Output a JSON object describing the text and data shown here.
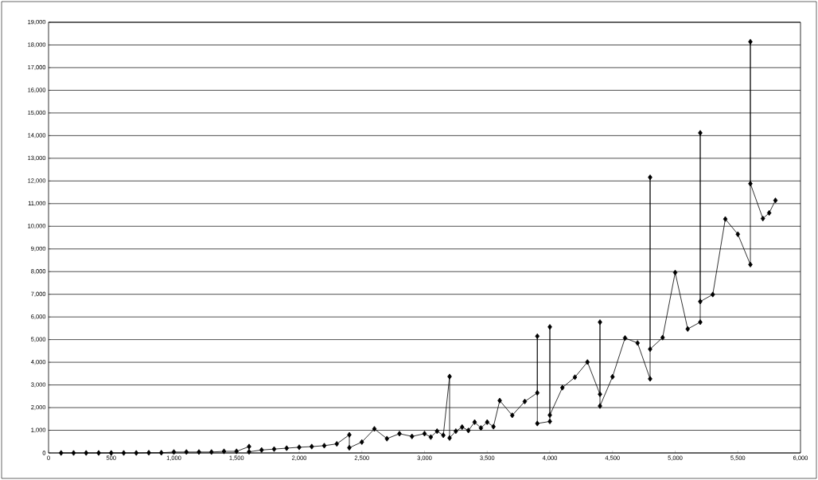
{
  "chart_data": {
    "type": "line",
    "grid": "y",
    "marker": "diamond",
    "line_style": "solid",
    "xlim": [
      0,
      6000
    ],
    "ylim": [
      0,
      19000
    ],
    "xticks": [
      0,
      500,
      {
        "value": 1000,
        "label": "1,000"
      },
      {
        "value": 1500,
        "label": "1,500"
      },
      {
        "value": 2000,
        "label": "2,000"
      },
      {
        "value": 2500,
        "label": "2,500"
      },
      {
        "value": 3000,
        "label": "3,000"
      },
      {
        "value": 3500,
        "label": "3,500"
      },
      {
        "value": 4000,
        "label": "4,000"
      },
      {
        "value": 4500,
        "label": "4,500"
      },
      {
        "value": 5000,
        "label": "5,000"
      },
      {
        "value": 5500,
        "label": "5,500"
      },
      {
        "value": 6000,
        "label": "6,000"
      }
    ],
    "yticks": [
      0,
      {
        "value": 1000,
        "label": "1,000"
      },
      {
        "value": 2000,
        "label": "2,000"
      },
      {
        "value": 3000,
        "label": "3,000"
      },
      {
        "value": 4000,
        "label": "4,000"
      },
      {
        "value": 5000,
        "label": "5,000"
      },
      {
        "value": 6000,
        "label": "6,000"
      },
      {
        "value": 7000,
        "label": "7,000"
      },
      {
        "value": 8000,
        "label": "8,000"
      },
      {
        "value": 9000,
        "label": "9,000"
      },
      {
        "value": 10000,
        "label": "10,000"
      },
      {
        "value": 11000,
        "label": "11,000"
      },
      {
        "value": 12000,
        "label": "12,000"
      },
      {
        "value": 13000,
        "label": "13,000"
      },
      {
        "value": 14000,
        "label": "14,000"
      },
      {
        "value": 15000,
        "label": "15,000"
      },
      {
        "value": 16000,
        "label": "16,000"
      },
      {
        "value": 17000,
        "label": "17,000"
      },
      {
        "value": 18000,
        "label": "18,000"
      },
      {
        "value": 19000,
        "label": "19,000"
      }
    ],
    "series": [
      {
        "color": "#000000",
        "x": [
          100,
          200,
          300,
          400,
          500,
          600,
          700,
          800,
          900,
          1000,
          1100,
          1200,
          1300,
          1400,
          1500,
          1600,
          1600,
          1700,
          1800,
          1900,
          2000,
          2100,
          2200,
          2300,
          2400,
          2400,
          2500,
          2600,
          2700,
          2800,
          2900,
          3000,
          3050,
          3100,
          3150,
          3200,
          3200,
          3250,
          3300,
          3350,
          3400,
          3450,
          3500,
          3550,
          3600,
          3700,
          3800,
          3900,
          3900,
          3900,
          4000,
          4000,
          4000,
          4100,
          4200,
          4300,
          4400,
          4400,
          4400,
          4500,
          4600,
          4700,
          4800,
          4800,
          4800,
          4900,
          5000,
          5100,
          5200,
          5200,
          5200,
          5300,
          5400,
          5500,
          5600,
          5600,
          5600,
          5700,
          5750,
          5800
        ],
        "values": [
          0,
          0,
          0,
          0,
          0,
          0,
          0,
          10,
          10,
          40,
          40,
          40,
          40,
          70,
          70,
          280,
          50,
          130,
          170,
          210,
          250,
          280,
          320,
          400,
          800,
          230,
          480,
          1060,
          630,
          850,
          730,
          850,
          700,
          960,
          780,
          3370,
          660,
          960,
          1140,
          990,
          1360,
          1100,
          1360,
          1160,
          2310,
          1660,
          2270,
          2650,
          5150,
          1300,
          1390,
          5560,
          1670,
          2880,
          3340,
          4010,
          2590,
          5770,
          2070,
          3360,
          5070,
          4850,
          3270,
          12160,
          4580,
          5090,
          7960,
          5470,
          5770,
          14120,
          6680,
          6990,
          10320,
          9650,
          8310,
          18140,
          11880,
          10340,
          10590,
          11140
        ]
      }
    ]
  }
}
